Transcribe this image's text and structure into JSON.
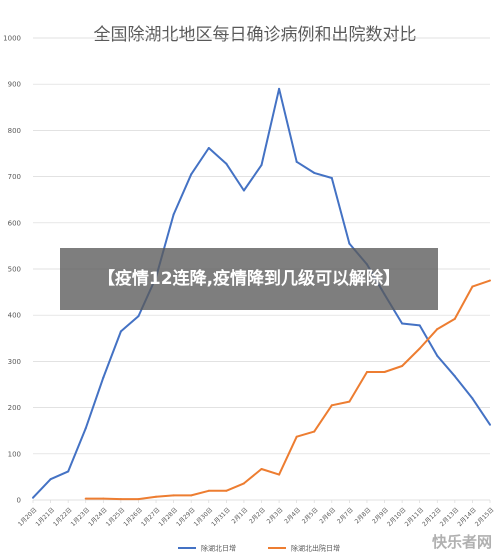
{
  "overlay": {
    "text": "【疫情12连降,疫情降到几级可以解除】"
  },
  "watermark": {
    "text": "快乐者网"
  },
  "chart_data": {
    "type": "line",
    "title": "全国除湖北地区每日确诊病例和出院数对比",
    "categories": [
      "1月20日",
      "1月21日",
      "1月22日",
      "1月23日",
      "1月24日",
      "1月25日",
      "1月26日",
      "1月27日",
      "1月28日",
      "1月29日",
      "1月30日",
      "1月31日",
      "2月1日",
      "2月2日",
      "2月3日",
      "2月4日",
      "2月5日",
      "2月6日",
      "2月7日",
      "2月8日",
      "2月9日",
      "2月10日",
      "2月11日",
      "2月12日",
      "2月13日",
      "2月14日",
      "2月15日"
    ],
    "ylim": [
      0,
      1000
    ],
    "yticks": [
      0,
      100,
      200,
      300,
      400,
      500,
      600,
      700,
      800,
      900,
      1000
    ],
    "grid": true,
    "legend_position": "bottom",
    "series": [
      {
        "name": "除湖北日增",
        "color": "#4472c4",
        "values": [
          5,
          45,
          62,
          155,
          265,
          365,
          398,
          482,
          618,
          705,
          762,
          728,
          670,
          725,
          890,
          732,
          708,
          697,
          555,
          510,
          445,
          382,
          378,
          312,
          268,
          220,
          163
        ]
      },
      {
        "name": "除湖北出院日增",
        "color": "#ed7d31",
        "values": [
          null,
          null,
          null,
          3,
          3,
          2,
          2,
          7,
          10,
          10,
          20,
          20,
          36,
          67,
          55,
          137,
          148,
          205,
          213,
          277,
          277,
          290,
          328,
          370,
          392,
          462,
          475
        ]
      }
    ]
  }
}
